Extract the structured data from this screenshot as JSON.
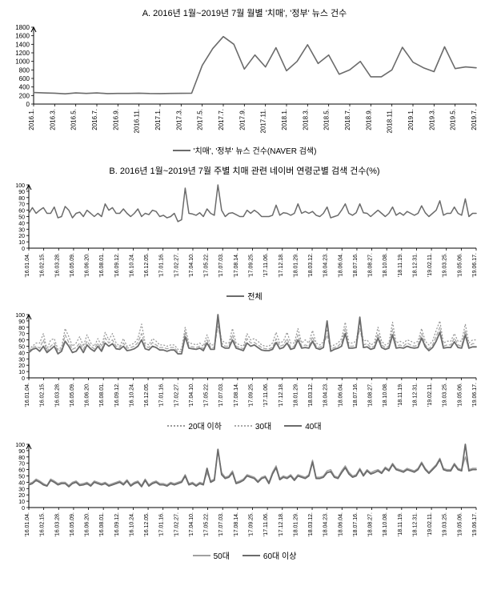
{
  "panelA": {
    "title": "A. 2016년 1월~2019년 7월 월별 '치매', '정부' 뉴스 건수",
    "type": "line",
    "ylim": [
      0,
      1800
    ],
    "ytick_step": 200,
    "yticks": [
      0,
      200,
      400,
      600,
      800,
      1000,
      1200,
      1400,
      1600,
      1800
    ],
    "x_labels": [
      "2016.1.",
      "2016.3.",
      "2016.5.",
      "2016.7.",
      "2016.9.",
      "2016.11.",
      "2017.1.",
      "2017.3.",
      "2017.5.",
      "2017.7.",
      "2017.9.",
      "2017.11.",
      "2018.1.",
      "2018.3.",
      "2018.5.",
      "2018.7.",
      "2018.9.",
      "2018.11.",
      "2019.1.",
      "2019.3.",
      "2019.5.",
      "2019.7."
    ],
    "series": [
      {
        "name": "'치매', '정부' 뉴스 건수(NAVER 검색)",
        "color": "#6b6b6b",
        "width": 1.6,
        "dash": "",
        "values": [
          270,
          260,
          255,
          240,
          260,
          250,
          260,
          245,
          250,
          250,
          255,
          248,
          245,
          250,
          252,
          255,
          905,
          1300,
          1580,
          1400,
          820,
          1150,
          870,
          1320,
          780,
          1000,
          1390,
          950,
          1150,
          700,
          800,
          1000,
          640,
          640,
          800,
          1330,
          980,
          850,
          760,
          1340,
          830,
          870,
          850
        ]
      }
    ],
    "legend_label": "'치매', '정부' 뉴스 건수(NAVER 검색)",
    "grid_color": "#ffffff",
    "axis_color": "#000000",
    "background_color": "#ffffff",
    "title_fontsize": 11,
    "label_fontsize": 9
  },
  "panelB_title": "B. 2016년 1월~2019년 7월 주별 치매 관련 네이버 연령군별 검색 건수(%)",
  "panelB_common": {
    "ylim": [
      0,
      100
    ],
    "ytick_step": 10,
    "yticks": [
      0,
      10,
      20,
      30,
      40,
      50,
      60,
      70,
      80,
      90,
      100
    ],
    "x_labels": [
      "'16.01.04.",
      "'16.02.15.",
      "'16.03.28.",
      "'16.05.09.",
      "'16.06.20.",
      "'16.08.01.",
      "'16.09.12.",
      "'16.10.24.",
      "'16.12.05.",
      "'17.01.16.",
      "'17.02.27.",
      "'17.04.10.",
      "'17.05.22.",
      "'17.07.03.",
      "'17.08.14.",
      "'17.09.25.",
      "'17.11.06.",
      "'17.12.18.",
      "'18.01.29.",
      "'18.03.12.",
      "'18.04.23.",
      "'18.06.04.",
      "'18.07.16.",
      "'18.08.27.",
      "'18.10.08.",
      "'18.11.19.",
      "'18.12.31.",
      "'19.02.11.",
      "'19.03.25.",
      "'19.05.06.",
      "'19.06.17."
    ],
    "grid_color": "#ffffff",
    "axis_color": "#000000",
    "background_color": "#ffffff",
    "label_fontsize": 8
  },
  "panelB1": {
    "type": "line",
    "series": [
      {
        "name": "전체",
        "color": "#6b6b6b",
        "width": 1.5,
        "dash": "",
        "values": [
          55,
          64,
          55,
          60,
          64,
          55,
          55,
          65,
          48,
          50,
          66,
          60,
          48,
          55,
          57,
          50,
          60,
          55,
          50,
          55,
          50,
          70,
          60,
          64,
          55,
          55,
          62,
          55,
          50,
          55,
          62,
          50,
          55,
          53,
          60,
          58,
          50,
          52,
          48,
          50,
          55,
          42,
          45,
          95,
          55,
          54,
          52,
          56,
          50,
          62,
          55,
          52,
          100,
          60,
          50,
          55,
          56,
          53,
          50,
          50,
          60,
          55,
          60,
          56,
          50,
          50,
          50,
          52,
          68,
          52,
          56,
          55,
          52,
          55,
          70,
          55,
          58,
          55,
          58,
          52,
          50,
          55,
          65,
          48,
          50,
          52,
          60,
          70,
          55,
          52,
          56,
          70,
          56,
          55,
          50,
          55,
          60,
          55,
          50,
          55,
          65,
          52,
          56,
          52,
          58,
          55,
          52,
          55,
          67,
          56,
          50,
          55,
          60,
          75,
          52,
          55,
          55,
          65,
          55,
          52,
          78,
          50,
          55,
          55
        ]
      }
    ],
    "legend_label": "전체"
  },
  "panelB2": {
    "type": "line",
    "series": [
      {
        "name": "20대 이하",
        "color": "#9a9a9a",
        "width": 1.3,
        "dash": "1 3",
        "values": [
          45,
          50,
          55,
          55,
          70,
          45,
          60,
          62,
          45,
          48,
          78,
          65,
          50,
          55,
          65,
          50,
          68,
          55,
          50,
          62,
          50,
          72,
          60,
          70,
          55,
          50,
          62,
          50,
          52,
          55,
          62,
          85,
          55,
          52,
          62,
          58,
          52,
          52,
          50,
          52,
          52,
          45,
          45,
          80,
          55,
          54,
          52,
          55,
          50,
          68,
          52,
          52,
          90,
          60,
          55,
          55,
          78,
          55,
          52,
          50,
          70,
          60,
          62,
          58,
          52,
          50,
          50,
          55,
          72,
          55,
          58,
          72,
          55,
          55,
          78,
          55,
          60,
          55,
          75,
          55,
          52,
          57,
          77,
          50,
          52,
          55,
          62,
          88,
          55,
          55,
          58,
          90,
          58,
          60,
          52,
          55,
          80,
          58,
          52,
          55,
          88,
          55,
          58,
          55,
          60,
          58,
          55,
          58,
          78,
          58,
          52,
          58,
          75,
          90,
          55,
          58,
          58,
          70,
          58,
          58,
          85,
          55,
          60,
          60
        ]
      },
      {
        "name": "30대",
        "color": "#a8a8a8",
        "width": 1.3,
        "dash": "4 3",
        "values": [
          42,
          48,
          50,
          47,
          60,
          42,
          50,
          55,
          42,
          45,
          68,
          56,
          45,
          48,
          55,
          45,
          58,
          50,
          46,
          55,
          45,
          63,
          55,
          60,
          50,
          48,
          55,
          47,
          48,
          50,
          56,
          70,
          50,
          48,
          56,
          52,
          48,
          48,
          46,
          48,
          48,
          41,
          42,
          73,
          50,
          49,
          48,
          50,
          46,
          60,
          48,
          48,
          82,
          55,
          50,
          50,
          68,
          50,
          48,
          46,
          62,
          55,
          56,
          52,
          48,
          46,
          46,
          48,
          62,
          50,
          52,
          62,
          48,
          50,
          68,
          50,
          52,
          50,
          65,
          50,
          48,
          52,
          68,
          45,
          48,
          50,
          56,
          78,
          50,
          50,
          52,
          78,
          52,
          54,
          48,
          50,
          70,
          52,
          48,
          50,
          77,
          50,
          52,
          50,
          55,
          52,
          50,
          52,
          70,
          52,
          46,
          52,
          65,
          80,
          50,
          52,
          52,
          63,
          52,
          50,
          75,
          50,
          54,
          54
        ]
      },
      {
        "name": "40대",
        "color": "#6b6b6b",
        "width": 1.8,
        "dash": "",
        "values": [
          40,
          45,
          47,
          42,
          50,
          40,
          45,
          50,
          38,
          42,
          58,
          50,
          40,
          42,
          50,
          40,
          52,
          46,
          42,
          50,
          42,
          55,
          50,
          54,
          46,
          45,
          50,
          43,
          44,
          46,
          50,
          60,
          46,
          44,
          50,
          48,
          44,
          44,
          42,
          44,
          44,
          38,
          38,
          65,
          47,
          46,
          45,
          47,
          43,
          55,
          45,
          45,
          100,
          50,
          47,
          47,
          60,
          47,
          45,
          43,
          55,
          50,
          52,
          48,
          44,
          43,
          43,
          45,
          56,
          46,
          48,
          55,
          45,
          47,
          60,
          47,
          48,
          47,
          58,
          47,
          45,
          48,
          90,
          42,
          45,
          47,
          50,
          70,
          47,
          47,
          48,
          96,
          48,
          49,
          45,
          47,
          63,
          48,
          45,
          47,
          68,
          47,
          48,
          47,
          50,
          48,
          47,
          48,
          63,
          49,
          43,
          48,
          58,
          72,
          47,
          48,
          48,
          57,
          48,
          47,
          68,
          47,
          49,
          49
        ]
      }
    ],
    "legend_items": [
      "20대 이하",
      "30대",
      "40대"
    ]
  },
  "panelB3": {
    "type": "line",
    "series": [
      {
        "name": "50대",
        "color": "#a0a0a0",
        "width": 1.4,
        "dash": "",
        "values": [
          38,
          40,
          45,
          42,
          38,
          35,
          45,
          42,
          38,
          40,
          40,
          35,
          40,
          42,
          37,
          38,
          40,
          36,
          42,
          40,
          38,
          40,
          36,
          38,
          40,
          42,
          38,
          44,
          36,
          40,
          42,
          35,
          45,
          36,
          40,
          42,
          38,
          38,
          36,
          40,
          38,
          40,
          42,
          52,
          38,
          40,
          36,
          40,
          38,
          55,
          42,
          45,
          90,
          55,
          48,
          50,
          58,
          40,
          42,
          45,
          52,
          50,
          48,
          42,
          48,
          50,
          40,
          56,
          66,
          46,
          50,
          48,
          52,
          45,
          52,
          50,
          48,
          52,
          75,
          48,
          48,
          50,
          58,
          60,
          50,
          48,
          58,
          66,
          56,
          50,
          52,
          62,
          52,
          60,
          55,
          58,
          60,
          56,
          64,
          60,
          70,
          62,
          60,
          58,
          62,
          60,
          58,
          62,
          72,
          62,
          56,
          62,
          68,
          78,
          62,
          60,
          60,
          70,
          62,
          60,
          80,
          60,
          62,
          62
        ]
      },
      {
        "name": "60대 이상",
        "color": "#6b6b6b",
        "width": 1.8,
        "dash": "",
        "values": [
          36,
          38,
          43,
          40,
          36,
          34,
          43,
          40,
          36,
          38,
          38,
          33,
          38,
          40,
          35,
          36,
          38,
          34,
          40,
          38,
          36,
          38,
          34,
          36,
          38,
          40,
          36,
          42,
          34,
          38,
          40,
          33,
          43,
          34,
          38,
          40,
          36,
          36,
          34,
          38,
          36,
          38,
          40,
          50,
          36,
          38,
          34,
          38,
          36,
          62,
          40,
          43,
          92,
          52,
          46,
          48,
          55,
          38,
          40,
          43,
          50,
          48,
          46,
          40,
          46,
          48,
          38,
          53,
          63,
          44,
          48,
          46,
          50,
          43,
          50,
          48,
          46,
          50,
          72,
          46,
          46,
          48,
          55,
          57,
          48,
          46,
          55,
          63,
          53,
          48,
          50,
          60,
          50,
          58,
          53,
          55,
          58,
          54,
          62,
          58,
          68,
          60,
          58,
          56,
          60,
          58,
          56,
          60,
          70,
          60,
          54,
          60,
          66,
          76,
          60,
          58,
          58,
          68,
          60,
          58,
          100,
          58,
          60,
          60
        ]
      }
    ],
    "legend_items": [
      "50대",
      "60대 이상"
    ]
  }
}
